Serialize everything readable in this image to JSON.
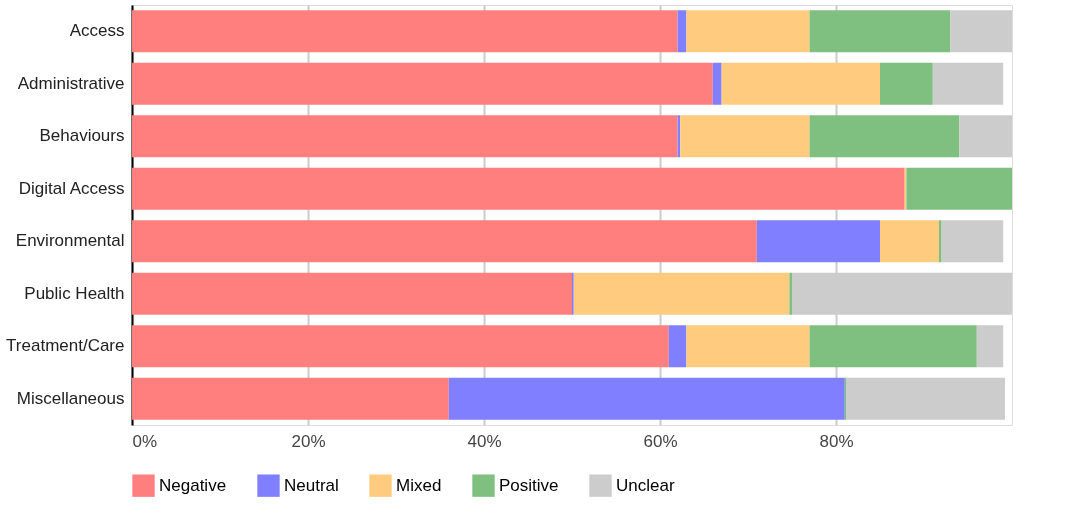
{
  "chart_data": {
    "type": "bar",
    "orientation": "horizontal",
    "stacked": true,
    "categories": [
      "Access",
      "Administrative",
      "Behaviours",
      "Digital Access",
      "Environmental",
      "Public Health",
      "Treatment/Care",
      "Miscellaneous"
    ],
    "series": [
      {
        "name": "Negative",
        "color": "#ff7f7f",
        "values": [
          62,
          66,
          62,
          87.8,
          71,
          50,
          61,
          36
        ]
      },
      {
        "name": "Neutral",
        "color": "#7f7fff",
        "values": [
          1,
          1,
          0.3,
          0,
          14,
          0.2,
          2,
          45
        ]
      },
      {
        "name": "Mixed",
        "color": "#ffcc7f",
        "values": [
          14,
          18,
          14.7,
          0.2,
          6.7,
          24.5,
          14,
          0
        ]
      },
      {
        "name": "Positive",
        "color": "#7fbf7f",
        "values": [
          16,
          6,
          17,
          12,
          0.3,
          0.3,
          19,
          0.2
        ]
      },
      {
        "name": "Unclear",
        "color": "#cccccc",
        "values": [
          7,
          8,
          6,
          0,
          7,
          25,
          3,
          18
        ]
      }
    ],
    "xlim": [
      0,
      100
    ],
    "xticks": [
      {
        "value": 0,
        "label": "0%"
      },
      {
        "value": 20,
        "label": "20%"
      },
      {
        "value": 40,
        "label": "40%"
      },
      {
        "value": 60,
        "label": "60%"
      },
      {
        "value": 80,
        "label": "80%"
      }
    ],
    "grid": "x",
    "legend": "bottom"
  }
}
